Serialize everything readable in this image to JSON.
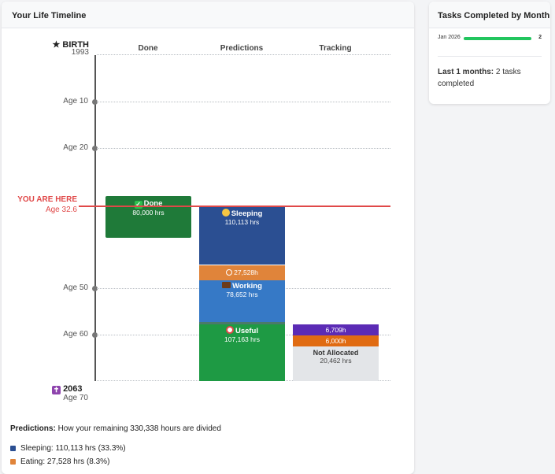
{
  "timeline": {
    "title": "Your Life Timeline",
    "birth_label": "BIRTH",
    "birth_year": "1993",
    "ages": [
      {
        "label": "Age 10",
        "value": 10
      },
      {
        "label": "Age 20",
        "value": 20
      },
      {
        "label": "Age 50",
        "value": 50
      },
      {
        "label": "Age 60",
        "value": 60
      }
    ],
    "you_are_here": "YOU ARE HERE",
    "current_age": "Age 32.6",
    "end_year": "2063",
    "end_age": "Age 70",
    "columns": [
      "Done",
      "Predictions",
      "Tracking"
    ],
    "done_block": {
      "title": "Done",
      "hours": "80,000 hrs",
      "icon": "check-mark-icon"
    },
    "predictions": {
      "sleeping": {
        "title": "Sleeping",
        "hours": "110,113 hrs",
        "icon": "sleeping-face-icon"
      },
      "eating": {
        "hours": "27,528h",
        "icon": "plate-icon"
      },
      "working": {
        "title": "Working",
        "hours": "78,652 hrs",
        "icon": "briefcase-icon"
      },
      "useful": {
        "title": "Useful",
        "hours": "107,163 hrs",
        "icon": "alarm-clock-icon"
      }
    },
    "tracking": {
      "purple": "6,709h",
      "orange": "6,000h",
      "not_allocated_title": "Not Allocated",
      "not_allocated_hours": "20,462 hrs"
    },
    "predictions_text_label": "Predictions:",
    "predictions_text": "How your remaining 330,338 hours are divided",
    "legend": [
      {
        "text": "Sleeping: 110,113 hrs (33.3%)",
        "color": "#2b4f92"
      },
      {
        "text": "Eating: 27,528 hrs (8.3%)",
        "color": "#e0843a"
      }
    ],
    "colors": {
      "done": "#1f7a39",
      "sleeping": "#2b4f92",
      "eating": "#e0843a",
      "working": "#3679c6",
      "useful": "#1e9a44",
      "purple": "#5b2bb5",
      "orange": "#e06b12",
      "not_allocated": "#e3e5e8",
      "now_line": "#e04848"
    }
  },
  "tasks": {
    "title": "Tasks Completed by Month",
    "bar_month": "Jan 2026",
    "bar_count": "2",
    "bar_fill": 1.0,
    "summary_label": "Last 1 months:",
    "summary_text": "2 tasks completed"
  }
}
